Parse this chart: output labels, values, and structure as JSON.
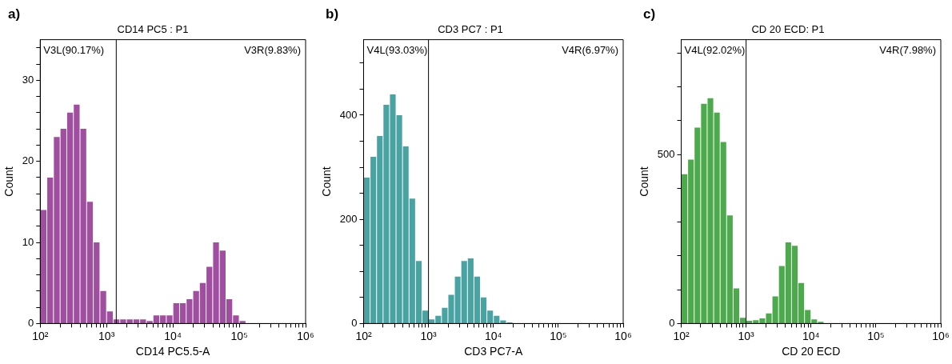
{
  "chart_data": [
    {
      "type": "histogram",
      "title": "CD14 PC5 : P1",
      "xlabel": "CD14 PC5.5-A",
      "ylabel": "Count",
      "color": "#a04ea0",
      "log": "x",
      "bins": [
        100,
        125.9,
        158.5,
        199.5,
        251.2,
        316.2,
        398.1,
        501.2,
        631,
        794.3,
        1000,
        1259,
        1585,
        1995,
        2512,
        3162,
        3981,
        5012,
        6310,
        7943,
        10000,
        12589,
        15849,
        19953,
        25119,
        31623,
        39811,
        50119,
        63096,
        79433,
        100000,
        125893,
        158489
      ],
      "values": [
        14,
        18,
        23,
        24,
        26,
        27,
        24,
        15,
        10,
        4,
        1.5,
        0.5,
        0.5,
        0.5,
        0.5,
        0.5,
        0.3,
        1,
        1,
        1,
        2.5,
        2.5,
        3,
        4,
        5,
        7,
        10,
        9,
        3,
        1,
        0.3,
        0
      ],
      "xlim": [
        100,
        1000000
      ],
      "ylim": [
        0,
        35
      ],
      "xticks": [
        {
          "value": 100,
          "label": "10²"
        },
        {
          "value": 200,
          "label": null
        },
        {
          "value": 300,
          "label": null
        },
        {
          "value": 400,
          "label": null
        },
        {
          "value": 500,
          "label": null
        },
        {
          "value": 600,
          "label": null
        },
        {
          "value": 700,
          "label": null
        },
        {
          "value": 800,
          "label": null
        },
        {
          "value": 900,
          "label": null
        },
        {
          "value": 1000,
          "label": "10³"
        },
        {
          "value": 2000,
          "label": null
        },
        {
          "value": 3000,
          "label": null
        },
        {
          "value": 4000,
          "label": null
        },
        {
          "value": 5000,
          "label": null
        },
        {
          "value": 6000,
          "label": null
        },
        {
          "value": 7000,
          "label": null
        },
        {
          "value": 8000,
          "label": null
        },
        {
          "value": 9000,
          "label": null
        },
        {
          "value": 10000,
          "label": "10⁴"
        },
        {
          "value": 20000,
          "label": null
        },
        {
          "value": 30000,
          "label": null
        },
        {
          "value": 40000,
          "label": null
        },
        {
          "value": 50000,
          "label": null
        },
        {
          "value": 60000,
          "label": null
        },
        {
          "value": 70000,
          "label": null
        },
        {
          "value": 80000,
          "label": null
        },
        {
          "value": 90000,
          "label": null
        },
        {
          "value": 100000,
          "label": "10⁵"
        },
        {
          "value": 200000,
          "label": null
        },
        {
          "value": 300000,
          "label": null
        },
        {
          "value": 400000,
          "label": null
        },
        {
          "value": 500000,
          "label": null
        },
        {
          "value": 600000,
          "label": null
        },
        {
          "value": 700000,
          "label": null
        },
        {
          "value": 800000,
          "label": null
        },
        {
          "value": 900000,
          "label": null
        },
        {
          "value": 1000000,
          "label": "10⁶"
        }
      ],
      "yticks": [
        0,
        {
          "value": 2,
          "label": null
        },
        {
          "value": 4,
          "label": null
        },
        {
          "value": 6,
          "label": null
        },
        {
          "value": 8,
          "label": null
        },
        10,
        {
          "value": 12,
          "label": null
        },
        {
          "value": 14,
          "label": null
        },
        {
          "value": 16,
          "label": null
        },
        {
          "value": 18,
          "label": null
        },
        20,
        {
          "value": 22,
          "label": null
        },
        {
          "value": 24,
          "label": null
        },
        {
          "value": 26,
          "label": null
        },
        {
          "value": 28,
          "label": null
        },
        30,
        {
          "value": 32,
          "label": null
        },
        {
          "value": 34,
          "label": null
        }
      ],
      "ref_lines": [
        {
          "axis": "x",
          "value": 1400
        }
      ],
      "annotations": [
        "a)",
        "V3L(90.17%)",
        "V3R(9.83%)"
      ]
    },
    {
      "type": "histogram",
      "title": "CD3 PC7 : P1",
      "xlabel": "CD3 PC7-A",
      "ylabel": "Count",
      "color": "#4aa3a3",
      "log": "x",
      "bins": [
        100,
        125.9,
        158.5,
        199.5,
        251.2,
        316.2,
        398.1,
        501.2,
        631,
        794.3,
        1000,
        1259,
        1585,
        1995,
        2512,
        3162,
        3981,
        5012,
        6310,
        7943,
        10000,
        12589,
        15849,
        19953,
        25119
      ],
      "values": [
        280,
        320,
        360,
        420,
        440,
        400,
        340,
        240,
        120,
        25,
        8,
        15,
        30,
        55,
        90,
        120,
        125,
        90,
        50,
        25,
        15,
        6,
        2,
        0
      ],
      "xlim": [
        100,
        1000000
      ],
      "ylim": [
        0,
        545
      ],
      "xticks": [
        {
          "value": 100,
          "label": "10²"
        },
        {
          "value": 200,
          "label": null
        },
        {
          "value": 300,
          "label": null
        },
        {
          "value": 400,
          "label": null
        },
        {
          "value": 500,
          "label": null
        },
        {
          "value": 600,
          "label": null
        },
        {
          "value": 700,
          "label": null
        },
        {
          "value": 800,
          "label": null
        },
        {
          "value": 900,
          "label": null
        },
        {
          "value": 1000,
          "label": "10³"
        },
        {
          "value": 2000,
          "label": null
        },
        {
          "value": 3000,
          "label": null
        },
        {
          "value": 4000,
          "label": null
        },
        {
          "value": 5000,
          "label": null
        },
        {
          "value": 6000,
          "label": null
        },
        {
          "value": 7000,
          "label": null
        },
        {
          "value": 8000,
          "label": null
        },
        {
          "value": 9000,
          "label": null
        },
        {
          "value": 10000,
          "label": "10⁴"
        },
        {
          "value": 20000,
          "label": null
        },
        {
          "value": 30000,
          "label": null
        },
        {
          "value": 40000,
          "label": null
        },
        {
          "value": 50000,
          "label": null
        },
        {
          "value": 60000,
          "label": null
        },
        {
          "value": 70000,
          "label": null
        },
        {
          "value": 80000,
          "label": null
        },
        {
          "value": 90000,
          "label": null
        },
        {
          "value": 100000,
          "label": "10⁵"
        },
        {
          "value": 200000,
          "label": null
        },
        {
          "value": 300000,
          "label": null
        },
        {
          "value": 400000,
          "label": null
        },
        {
          "value": 500000,
          "label": null
        },
        {
          "value": 600000,
          "label": null
        },
        {
          "value": 700000,
          "label": null
        },
        {
          "value": 800000,
          "label": null
        },
        {
          "value": 900000,
          "label": null
        },
        {
          "value": 1000000,
          "label": "10⁶"
        }
      ],
      "yticks": [
        0,
        {
          "value": 50,
          "label": null
        },
        {
          "value": 100,
          "label": null
        },
        {
          "value": 150,
          "label": null
        },
        200,
        {
          "value": 250,
          "label": null
        },
        {
          "value": 300,
          "label": null
        },
        {
          "value": 350,
          "label": null
        },
        400,
        {
          "value": 450,
          "label": null
        },
        {
          "value": 500,
          "label": null
        }
      ],
      "ref_lines": [
        {
          "axis": "x",
          "value": 1000
        }
      ],
      "annotations": [
        "b)",
        "V4L(93.03%)",
        "V4R(6.97%)"
      ]
    },
    {
      "type": "histogram",
      "title": "CD 20 ECD: P1",
      "xlabel": "CD 20 ECD",
      "ylabel": "Count",
      "color": "#4caa4c",
      "log": "x",
      "bins": [
        100,
        125.9,
        158.5,
        199.5,
        251.2,
        316.2,
        398.1,
        501.2,
        631,
        794.3,
        1000,
        1259,
        1585,
        1995,
        2512,
        3162,
        3981,
        5012,
        6310,
        7943,
        10000,
        12589,
        15849,
        19953,
        25119
      ],
      "values": [
        442,
        485,
        580,
        650,
        667,
        624,
        537,
        320,
        104,
        17,
        8,
        10,
        15,
        30,
        80,
        170,
        240,
        230,
        120,
        40,
        12,
        5,
        1,
        0
      ],
      "xlim": [
        100,
        1000000
      ],
      "ylim": [
        0,
        840
      ],
      "xticks": [
        {
          "value": 100,
          "label": "10²"
        },
        {
          "value": 200,
          "label": null
        },
        {
          "value": 300,
          "label": null
        },
        {
          "value": 400,
          "label": null
        },
        {
          "value": 500,
          "label": null
        },
        {
          "value": 600,
          "label": null
        },
        {
          "value": 700,
          "label": null
        },
        {
          "value": 800,
          "label": null
        },
        {
          "value": 900,
          "label": null
        },
        {
          "value": 1000,
          "label": "10³"
        },
        {
          "value": 2000,
          "label": null
        },
        {
          "value": 3000,
          "label": null
        },
        {
          "value": 4000,
          "label": null
        },
        {
          "value": 5000,
          "label": null
        },
        {
          "value": 6000,
          "label": null
        },
        {
          "value": 7000,
          "label": null
        },
        {
          "value": 8000,
          "label": null
        },
        {
          "value": 9000,
          "label": null
        },
        {
          "value": 10000,
          "label": "10⁴"
        },
        {
          "value": 20000,
          "label": null
        },
        {
          "value": 30000,
          "label": null
        },
        {
          "value": 40000,
          "label": null
        },
        {
          "value": 50000,
          "label": null
        },
        {
          "value": 60000,
          "label": null
        },
        {
          "value": 70000,
          "label": null
        },
        {
          "value": 80000,
          "label": null
        },
        {
          "value": 90000,
          "label": null
        },
        {
          "value": 100000,
          "label": "10⁵"
        },
        {
          "value": 200000,
          "label": null
        },
        {
          "value": 300000,
          "label": null
        },
        {
          "value": 400000,
          "label": null
        },
        {
          "value": 500000,
          "label": null
        },
        {
          "value": 600000,
          "label": null
        },
        {
          "value": 700000,
          "label": null
        },
        {
          "value": 800000,
          "label": null
        },
        {
          "value": 900000,
          "label": null
        },
        {
          "value": 1000000,
          "label": "10⁶"
        }
      ],
      "yticks": [
        0,
        {
          "value": 100,
          "label": null
        },
        {
          "value": 200,
          "label": null
        },
        {
          "value": 300,
          "label": null
        },
        {
          "value": 400,
          "label": null
        },
        500,
        {
          "value": 600,
          "label": null
        },
        {
          "value": 700,
          "label": null
        },
        {
          "value": 800,
          "label": null
        }
      ],
      "ref_lines": [
        {
          "axis": "x",
          "value": 1000
        }
      ],
      "annotations": [
        "c)",
        "V4L(92.02%)",
        "V4R(7.98%)"
      ]
    }
  ]
}
